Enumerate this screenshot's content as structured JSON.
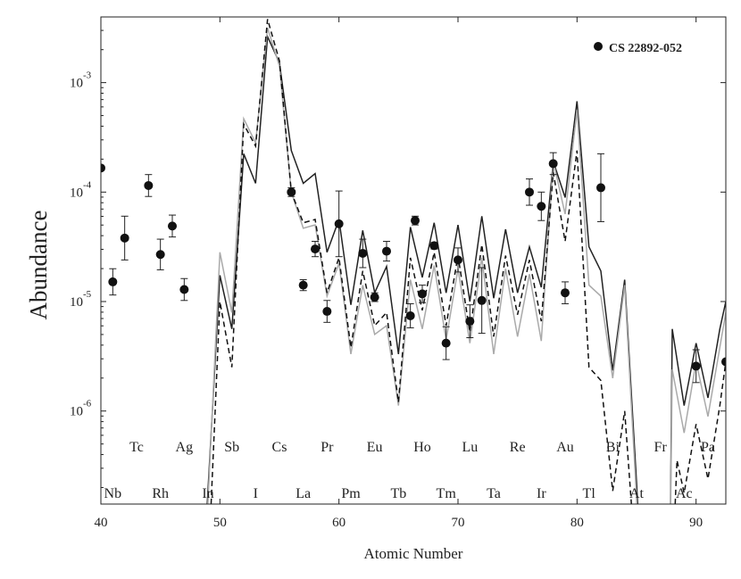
{
  "chart_data": {
    "type": "scatter",
    "xlabel": "Atomic Number",
    "ylabel": "Abundance",
    "xlim": [
      40,
      92.5
    ],
    "ylim_log10": [
      -6.85,
      -2.4
    ],
    "y_scale": "log",
    "x_ticks": [
      40,
      50,
      60,
      70,
      80,
      90
    ],
    "y_ticks": [
      {
        "value": -6,
        "label_base": "10",
        "label_exp": "-6"
      },
      {
        "value": -5,
        "label_base": "10",
        "label_exp": "-5"
      },
      {
        "value": -4,
        "label_base": "10",
        "label_exp": "-4"
      },
      {
        "value": -3,
        "label_base": "10",
        "label_exp": "-3"
      }
    ],
    "legend": {
      "position": "top-right",
      "label": "CS 22892-052"
    },
    "element_labels": [
      {
        "z": 41,
        "sym": "Nb",
        "row": "low"
      },
      {
        "z": 43,
        "sym": "Tc",
        "row": "high"
      },
      {
        "z": 45,
        "sym": "Rh",
        "row": "low"
      },
      {
        "z": 47,
        "sym": "Ag",
        "row": "high"
      },
      {
        "z": 49,
        "sym": "In",
        "row": "low"
      },
      {
        "z": 51,
        "sym": "Sb",
        "row": "high"
      },
      {
        "z": 53,
        "sym": "I",
        "row": "low"
      },
      {
        "z": 55,
        "sym": "Cs",
        "row": "high"
      },
      {
        "z": 57,
        "sym": "La",
        "row": "low"
      },
      {
        "z": 59,
        "sym": "Pr",
        "row": "high"
      },
      {
        "z": 61,
        "sym": "Pm",
        "row": "low"
      },
      {
        "z": 63,
        "sym": "Eu",
        "row": "high"
      },
      {
        "z": 65,
        "sym": "Tb",
        "row": "low"
      },
      {
        "z": 67,
        "sym": "Ho",
        "row": "high"
      },
      {
        "z": 69,
        "sym": "Tm",
        "row": "low"
      },
      {
        "z": 71,
        "sym": "Lu",
        "row": "high"
      },
      {
        "z": 73,
        "sym": "Ta",
        "row": "low"
      },
      {
        "z": 75,
        "sym": "Re",
        "row": "high"
      },
      {
        "z": 77,
        "sym": "Ir",
        "row": "low"
      },
      {
        "z": 79,
        "sym": "Au",
        "row": "high"
      },
      {
        "z": 81,
        "sym": "Tl",
        "row": "low"
      },
      {
        "z": 83,
        "sym": "Bi",
        "row": "high"
      },
      {
        "z": 85,
        "sym": "At",
        "row": "low"
      },
      {
        "z": 87,
        "sym": "Fr",
        "row": "high"
      },
      {
        "z": 89,
        "sym": "Ac",
        "row": "low"
      },
      {
        "z": 91,
        "sym": "Pa",
        "row": "high"
      }
    ],
    "observations": {
      "name": "CS 22892-052",
      "points": [
        {
          "x": 40,
          "y": -3.78,
          "err": 0
        },
        {
          "x": 41,
          "y": -4.82,
          "err": 0.12
        },
        {
          "x": 42,
          "y": -4.42,
          "err": 0.2
        },
        {
          "x": 44,
          "y": -3.94,
          "err": 0.1
        },
        {
          "x": 45,
          "y": -4.57,
          "err": 0.14
        },
        {
          "x": 46,
          "y": -4.31,
          "err": 0.1
        },
        {
          "x": 47,
          "y": -4.89,
          "err": 0.1
        },
        {
          "x": 56,
          "y": -4.0,
          "err": 0.04
        },
        {
          "x": 57,
          "y": -4.85,
          "err": 0.05
        },
        {
          "x": 58,
          "y": -4.52,
          "err": 0.07
        },
        {
          "x": 59,
          "y": -5.09,
          "err": 0.1
        },
        {
          "x": 60,
          "y": -4.29,
          "err": 0.3
        },
        {
          "x": 62,
          "y": -4.56,
          "err": 0.13
        },
        {
          "x": 63,
          "y": -4.96,
          "err": 0.04
        },
        {
          "x": 64,
          "y": -4.54,
          "err": 0.09
        },
        {
          "x": 66,
          "y": -5.13,
          "err": 0.11
        },
        {
          "x": 66.4,
          "y": -4.26,
          "err": 0.04
        },
        {
          "x": 67,
          "y": -4.93,
          "err": 0.08
        },
        {
          "x": 68,
          "y": -4.49,
          "err": 0.03
        },
        {
          "x": 69,
          "y": -5.38,
          "err": 0.15
        },
        {
          "x": 70,
          "y": -4.62,
          "err": 0.11
        },
        {
          "x": 71,
          "y": -5.18,
          "err": 0.15
        },
        {
          "x": 72,
          "y": -4.99,
          "err": 0.3
        },
        {
          "x": 76,
          "y": -4.0,
          "err": 0.12
        },
        {
          "x": 77,
          "y": -4.13,
          "err": 0.13
        },
        {
          "x": 78,
          "y": -3.74,
          "err": 0.1
        },
        {
          "x": 79,
          "y": -4.92,
          "err": 0.1
        },
        {
          "x": 82,
          "y": -3.96,
          "err": 0.31
        },
        {
          "x": 90,
          "y": -5.59,
          "err": 0.15
        },
        {
          "x": 92.5,
          "y": -5.55,
          "err": 0
        }
      ]
    },
    "series": [
      {
        "color": "#222222",
        "style": "solid",
        "points": [
          [
            48.6,
            -7.5
          ],
          [
            50,
            -4.76
          ],
          [
            51,
            -5.25
          ],
          [
            52,
            -3.65
          ],
          [
            53,
            -3.92
          ],
          [
            54,
            -2.58
          ],
          [
            55,
            -2.82
          ],
          [
            56,
            -3.62
          ],
          [
            57,
            -3.92
          ],
          [
            58,
            -3.83
          ],
          [
            59,
            -4.55
          ],
          [
            60,
            -4.25
          ],
          [
            61,
            -5.03
          ],
          [
            62,
            -4.35
          ],
          [
            63,
            -4.92
          ],
          [
            64,
            -4.68
          ],
          [
            65,
            -5.48
          ],
          [
            66,
            -4.32
          ],
          [
            67,
            -4.78
          ],
          [
            68,
            -4.28
          ],
          [
            69,
            -4.92
          ],
          [
            70,
            -4.3
          ],
          [
            71,
            -5.0
          ],
          [
            72,
            -4.22
          ],
          [
            73,
            -4.97
          ],
          [
            74,
            -4.34
          ],
          [
            75,
            -4.92
          ],
          [
            76,
            -4.5
          ],
          [
            77,
            -4.87
          ],
          [
            78,
            -3.72
          ],
          [
            79,
            -4.05
          ],
          [
            80,
            -3.17
          ],
          [
            81,
            -4.5
          ],
          [
            82,
            -4.72
          ],
          [
            83,
            -5.63
          ],
          [
            84,
            -4.8
          ],
          [
            85,
            -6.65
          ],
          [
            85.4,
            -7.5
          ]
        ],
        "segments2": [
          [
            [
              87.8,
              -7.5
            ],
            [
              88,
              -5.25
            ],
            [
              89,
              -5.95
            ],
            [
              90,
              -5.38
            ],
            [
              91,
              -5.88
            ],
            [
              92,
              -5.25
            ],
            [
              92.5,
              -5.0
            ]
          ]
        ]
      },
      {
        "color": "#aaaaaa",
        "style": "solid",
        "points": [
          [
            48.7,
            -7.5
          ],
          [
            50,
            -4.55
          ],
          [
            51,
            -5.1
          ],
          [
            52,
            -3.33
          ],
          [
            53,
            -3.55
          ],
          [
            54,
            -2.5
          ],
          [
            55,
            -2.85
          ],
          [
            56,
            -4.0
          ],
          [
            57,
            -4.33
          ],
          [
            58,
            -4.3
          ],
          [
            59,
            -4.95
          ],
          [
            60,
            -4.65
          ],
          [
            61,
            -5.48
          ],
          [
            62,
            -4.85
          ],
          [
            63,
            -5.3
          ],
          [
            64,
            -5.22
          ],
          [
            65,
            -5.95
          ],
          [
            66,
            -4.8
          ],
          [
            67,
            -5.25
          ],
          [
            68,
            -4.67
          ],
          [
            69,
            -5.35
          ],
          [
            70,
            -4.7
          ],
          [
            71,
            -5.38
          ],
          [
            72,
            -4.6
          ],
          [
            73,
            -5.48
          ],
          [
            74,
            -4.7
          ],
          [
            75,
            -5.32
          ],
          [
            76,
            -4.75
          ],
          [
            77,
            -5.36
          ],
          [
            78,
            -3.72
          ],
          [
            79,
            -4.2
          ],
          [
            80,
            -3.25
          ],
          [
            81,
            -4.85
          ],
          [
            82,
            -4.95
          ],
          [
            83,
            -5.7
          ],
          [
            84,
            -4.85
          ],
          [
            85,
            -6.8
          ],
          [
            85.3,
            -7.5
          ]
        ],
        "segments2": [
          [
            [
              87.8,
              -7.5
            ],
            [
              88,
              -5.62
            ],
            [
              89,
              -6.2
            ],
            [
              90,
              -5.55
            ],
            [
              91,
              -6.05
            ],
            [
              92,
              -5.42
            ],
            [
              92.5,
              -5.1
            ]
          ]
        ]
      },
      {
        "color": "#111111",
        "style": "dashed",
        "points": [
          [
            49,
            -7.5
          ],
          [
            50,
            -5.0
          ],
          [
            51,
            -5.6
          ],
          [
            52,
            -3.38
          ],
          [
            53,
            -3.58
          ],
          [
            54,
            -2.42
          ],
          [
            55,
            -2.8
          ],
          [
            56,
            -4.0
          ],
          [
            57,
            -4.28
          ],
          [
            58,
            -4.25
          ],
          [
            59,
            -4.92
          ],
          [
            60,
            -4.6
          ],
          [
            61,
            -5.42
          ],
          [
            62,
            -4.72
          ],
          [
            63,
            -5.22
          ],
          [
            64,
            -5.1
          ],
          [
            65,
            -5.92
          ],
          [
            66,
            -4.6
          ],
          [
            67,
            -5.08
          ],
          [
            68,
            -4.55
          ],
          [
            69,
            -5.22
          ],
          [
            70,
            -4.58
          ],
          [
            71,
            -5.28
          ],
          [
            72,
            -4.48
          ],
          [
            73,
            -5.32
          ],
          [
            74,
            -4.58
          ],
          [
            75,
            -5.12
          ],
          [
            76,
            -4.62
          ],
          [
            77,
            -5.18
          ],
          [
            78,
            -3.82
          ],
          [
            79,
            -4.45
          ],
          [
            80,
            -3.62
          ],
          [
            81,
            -5.6
          ],
          [
            82,
            -5.72
          ],
          [
            83,
            -6.73
          ],
          [
            84,
            -6.0
          ],
          [
            85,
            -7.5
          ]
        ],
        "segments2": [
          [
            [
              88,
              -7.5
            ],
            [
              88.4,
              -6.45
            ],
            [
              89,
              -6.75
            ],
            [
              90,
              -6.12
            ],
            [
              91,
              -6.62
            ],
            [
              92,
              -5.95
            ],
            [
              92.5,
              -5.55
            ]
          ]
        ]
      }
    ]
  }
}
